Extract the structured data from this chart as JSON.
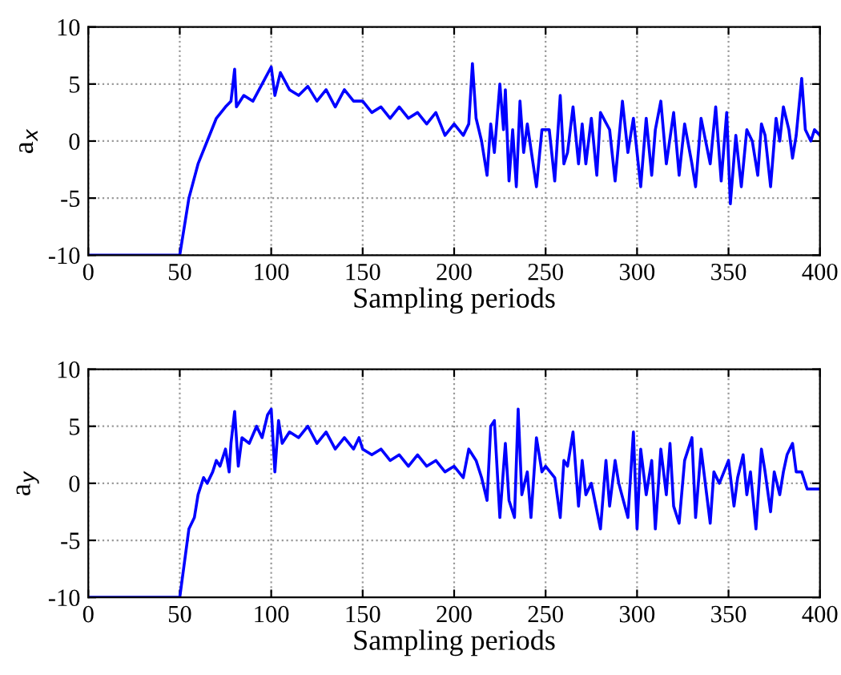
{
  "chart_data": [
    {
      "type": "line",
      "xlabel": "Sampling periods",
      "ylabel": "a$_{x}$",
      "xlim": [
        0,
        400
      ],
      "ylim": [
        -10,
        10
      ],
      "xticks": [
        0,
        50,
        100,
        150,
        200,
        250,
        300,
        350,
        400
      ],
      "yticks": [
        -10,
        -5,
        0,
        5,
        10
      ],
      "grid": true,
      "series": [
        {
          "color": "#0000ff",
          "x": [
            0,
            50,
            55,
            60,
            65,
            70,
            75,
            78,
            80,
            81,
            85,
            90,
            95,
            100,
            102,
            105,
            110,
            115,
            120,
            125,
            130,
            135,
            140,
            145,
            150,
            155,
            160,
            165,
            170,
            175,
            180,
            185,
            190,
            195,
            200,
            205,
            208,
            210,
            212,
            215,
            218,
            220,
            222,
            225,
            227,
            228,
            230,
            232,
            234,
            236,
            238,
            240,
            245,
            248,
            252,
            255,
            258,
            260,
            262,
            265,
            268,
            270,
            272,
            275,
            278,
            280,
            285,
            288,
            292,
            295,
            298,
            302,
            305,
            308,
            310,
            313,
            316,
            320,
            323,
            326,
            330,
            332,
            335,
            340,
            343,
            346,
            349,
            351,
            354,
            357,
            360,
            363,
            366,
            368,
            370,
            373,
            376,
            378,
            380,
            383,
            385,
            387,
            390,
            392,
            395,
            397,
            400
          ],
          "values": [
            -10,
            -10,
            -5,
            -2,
            0,
            2,
            3,
            3.5,
            6.3,
            3,
            4,
            3.5,
            5,
            6.5,
            4,
            6,
            4.5,
            4,
            4.8,
            3.5,
            4.5,
            3,
            4.5,
            3.5,
            3.5,
            2.5,
            3,
            2,
            3,
            2,
            2.5,
            1.5,
            2.5,
            0.5,
            1.5,
            0.5,
            1.5,
            6.8,
            2,
            0,
            -3,
            1.5,
            -1,
            5,
            1,
            4.5,
            -3.5,
            1,
            -4,
            3.5,
            -1,
            1.5,
            -4,
            1,
            1,
            -3.5,
            4,
            -2,
            -1,
            3,
            -2,
            1.5,
            -2,
            2,
            -3,
            2.5,
            1,
            -3.5,
            3.5,
            -1,
            2,
            -4,
            2,
            -3,
            1,
            3.5,
            -2,
            2.5,
            -3,
            1.5,
            -2,
            -4,
            2,
            -2,
            3,
            -3.5,
            2.5,
            -5.5,
            0.5,
            -4,
            1,
            0,
            -3,
            1.5,
            0.5,
            -4,
            2,
            0,
            3,
            1,
            -1.5,
            0.5,
            5.5,
            1,
            0,
            1,
            0.5
          ]
        }
      ]
    },
    {
      "type": "line",
      "xlabel": "Sampling periods",
      "ylabel": "a$_{y}$",
      "xlim": [
        0,
        400
      ],
      "ylim": [
        -10,
        10
      ],
      "xticks": [
        0,
        50,
        100,
        150,
        200,
        250,
        300,
        350,
        400
      ],
      "yticks": [
        -10,
        -5,
        0,
        5,
        10
      ],
      "grid": true,
      "series": [
        {
          "color": "#0000ff",
          "x": [
            0,
            50,
            55,
            58,
            60,
            63,
            65,
            68,
            70,
            72,
            75,
            77,
            78,
            80,
            82,
            84,
            88,
            92,
            95,
            98,
            100,
            102,
            104,
            106,
            110,
            115,
            120,
            125,
            130,
            135,
            140,
            145,
            148,
            150,
            155,
            160,
            165,
            170,
            175,
            180,
            185,
            190,
            195,
            200,
            205,
            208,
            212,
            215,
            218,
            220,
            222,
            225,
            228,
            230,
            233,
            235,
            237,
            240,
            242,
            245,
            248,
            250,
            255,
            258,
            260,
            262,
            265,
            268,
            270,
            272,
            275,
            280,
            283,
            285,
            288,
            290,
            295,
            298,
            300,
            302,
            305,
            308,
            310,
            313,
            316,
            318,
            320,
            323,
            326,
            330,
            332,
            335,
            340,
            342,
            345,
            350,
            353,
            355,
            358,
            360,
            362,
            365,
            368,
            370,
            373,
            375,
            378,
            380,
            382,
            385,
            387,
            390,
            393,
            400
          ],
          "values": [
            -10,
            -10,
            -4,
            -3,
            -1,
            0.5,
            0,
            1,
            2,
            1.5,
            3,
            1,
            3.5,
            6.3,
            1.5,
            4,
            3.5,
            5,
            4,
            6,
            6.5,
            1,
            5.5,
            3.5,
            4.5,
            4,
            5,
            3.5,
            4.5,
            3,
            4,
            3,
            4,
            3,
            2.5,
            3,
            2,
            2.5,
            1.5,
            2.5,
            1.5,
            2,
            1,
            1.5,
            0.5,
            3,
            2,
            0.5,
            -1.5,
            5,
            5.5,
            -3,
            3.5,
            -1.5,
            -3,
            6.5,
            -1,
            1,
            -3,
            4,
            1,
            1.5,
            0.5,
            -3,
            2,
            1.5,
            4.5,
            -2,
            2,
            -1,
            0,
            -4,
            2,
            -2,
            2,
            0,
            -3,
            4.5,
            -4,
            3,
            -1,
            2,
            -4,
            3,
            -1,
            3.5,
            -2,
            -3.5,
            2,
            4,
            -3,
            3,
            -3.5,
            1,
            0,
            2,
            -2,
            0.5,
            2.5,
            -1,
            1,
            -4,
            3,
            1,
            -2.5,
            1,
            -1,
            1,
            2.5,
            3.5,
            1,
            1,
            -0.5,
            -0.5
          ]
        }
      ]
    }
  ]
}
